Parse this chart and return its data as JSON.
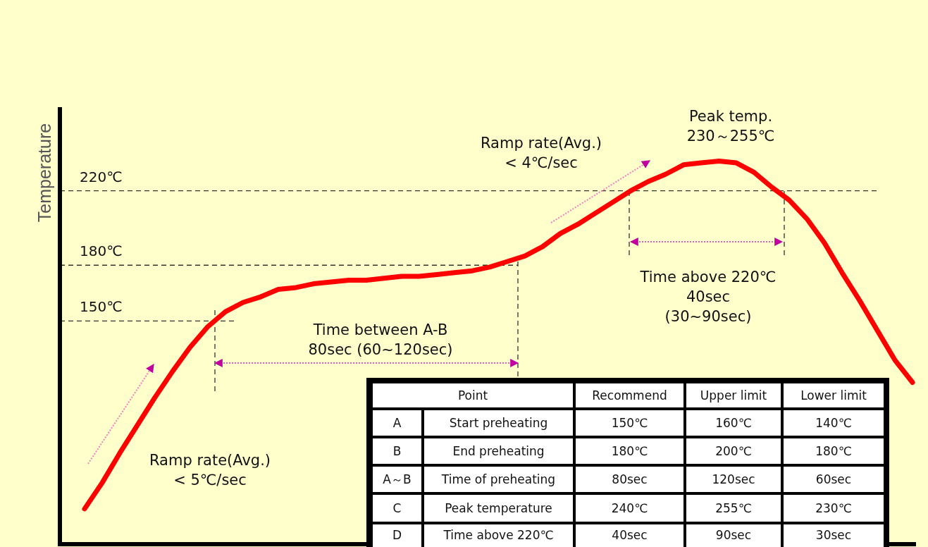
{
  "chart_data": [
    {
      "type": "line",
      "ylabel": "Temperature",
      "categories": [
        null,
        null,
        null,
        null,
        null,
        null,
        null,
        null,
        null,
        null,
        null,
        null,
        null,
        null,
        null,
        null,
        null,
        null,
        null,
        null,
        null,
        null,
        null,
        null,
        null,
        null,
        null,
        null,
        null,
        null,
        null,
        null,
        null,
        null,
        null,
        null,
        null,
        null,
        null,
        null,
        null,
        null,
        null,
        null,
        null,
        null,
        null,
        null
      ],
      "series": [
        {
          "color": "#ff0000",
          "values": [
            49,
            63,
            79,
            94,
            109,
            123,
            136,
            147,
            155,
            160,
            163,
            167,
            168,
            170,
            171,
            172,
            172,
            173,
            174,
            174,
            175,
            176,
            177,
            179,
            182,
            185,
            190,
            197,
            202,
            208,
            214,
            220,
            225,
            229,
            234,
            235,
            236,
            235,
            230,
            222,
            215,
            205,
            192,
            176,
            161,
            145,
            129,
            117
          ]
        }
      ],
      "ylim": [
        30,
        265
      ],
      "marker": "none",
      "line_style": "solid",
      "ref_lines": [
        {
          "axis": "y",
          "value": 220,
          "label": "220℃",
          "line_style": "dashed",
          "color": "#333333"
        },
        {
          "axis": "y",
          "value": 180,
          "label": "180℃",
          "line_style": "dashed",
          "color": "#333333"
        },
        {
          "axis": "y",
          "value": 150,
          "label": "150℃",
          "line_style": "dashed",
          "color": "#333333"
        }
      ],
      "annotations": [
        "Ramp rate(Avg.)\n< 5℃/sec",
        "Ramp rate(Avg.)\n< 4℃/sec",
        "Peak temp.\n230～255℃",
        "Time between A-B\n80sec (60~120sec)",
        "Time above 220℃\n40sec\n(30~90sec)"
      ]
    },
    {
      "type": "other",
      "categories": [
        "Point",
        "Recommend",
        "Upper limit",
        "Lower limit"
      ],
      "y_categories": [
        "A",
        "B",
        "A～B",
        "C",
        "D"
      ],
      "y2_categories": [
        "Start preheating",
        "End preheating",
        "Time of preheating",
        "Peak temperature",
        "Time above 220℃"
      ],
      "cell_labels": [
        [
          "150℃",
          "160℃",
          "140℃"
        ],
        [
          "180℃",
          "200℃",
          "180℃"
        ],
        [
          "80sec",
          "120sec",
          "60sec"
        ],
        [
          "240℃",
          "255℃",
          "230℃"
        ],
        [
          "40sec",
          "90sec",
          "30sec"
        ]
      ]
    }
  ]
}
